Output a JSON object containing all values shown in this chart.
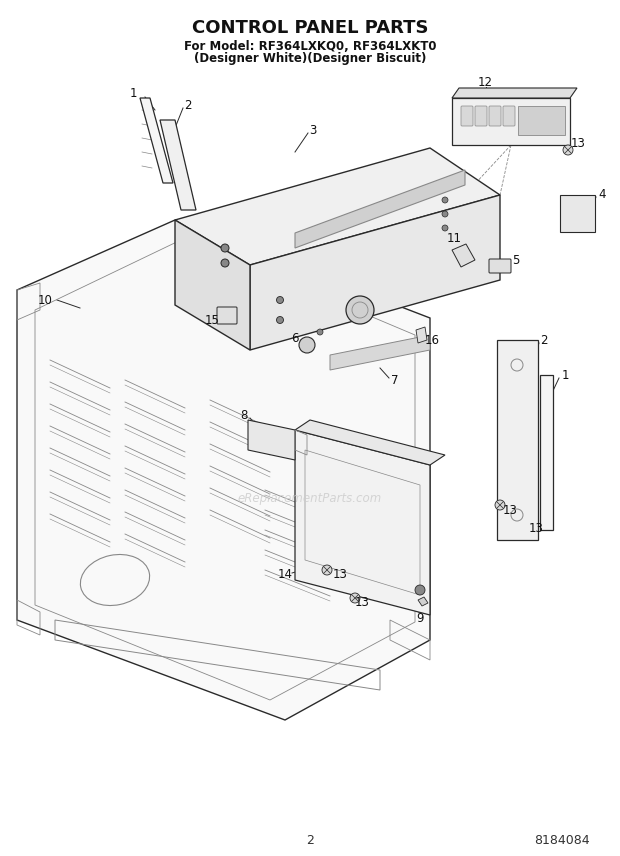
{
  "title": "CONTROL PANEL PARTS",
  "subtitle_line1": "For Model: RF364LXKQ0, RF364LXKT0",
  "subtitle_line2": "(Designer White)(Designer Biscuit)",
  "page_number": "2",
  "doc_number": "8184084",
  "bg": "#ffffff",
  "lc": "#2a2a2a",
  "gray": "#888888",
  "lgray": "#bbbbbb",
  "watermark": "eReplacementParts.com",
  "wm_color": "#cccccc",
  "title_fs": 13,
  "sub_fs": 8.5,
  "label_fs": 8.5,
  "footer_fs": 9
}
